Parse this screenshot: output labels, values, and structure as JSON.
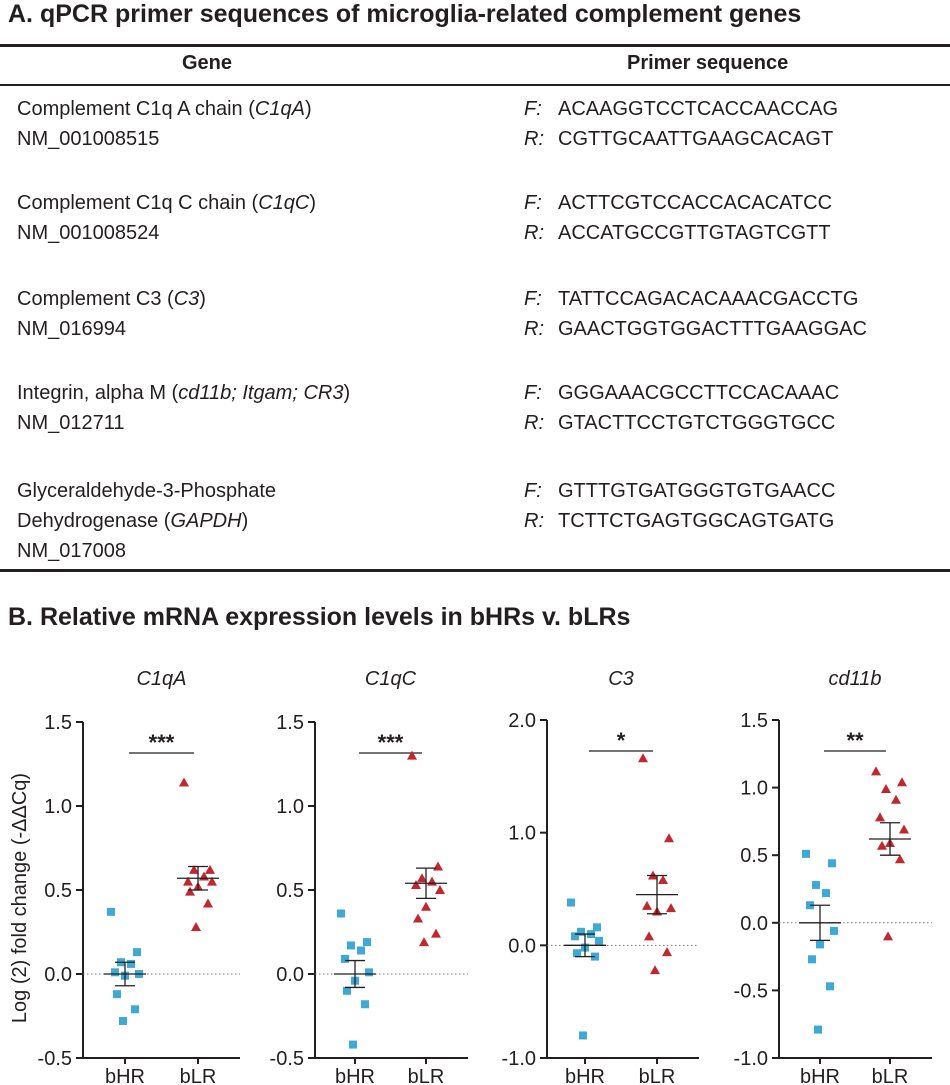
{
  "panel_a": {
    "title": "A. qPCR primer sequences of microglia-related complement genes",
    "columns": {
      "gene": "Gene",
      "primer": "Primer sequence"
    },
    "rows": [
      {
        "gene_pre": "Complement C1q A chain (",
        "gene_italic": "C1qA",
        "gene_post": ")",
        "accession": "NM_001008515",
        "f_label": "F:",
        "forward": "ACAAGGTCCTCACCAACCAG",
        "r_label": "R:",
        "reverse": "CGTTGCAATTGAAGCACAGT"
      },
      {
        "gene_pre": "Complement C1q C chain (",
        "gene_italic": "C1qC",
        "gene_post": ")",
        "accession": "NM_001008524",
        "f_label": "F:",
        "forward": "ACTTCGTCCACCACACATCC",
        "r_label": "R:",
        "reverse": "ACCATGCCGTTGTAGTCGTT"
      },
      {
        "gene_pre": "Complement C3 (",
        "gene_italic": "C3",
        "gene_post": ")",
        "accession": "NM_016994",
        "f_label": "F:",
        "forward": "TATTCCAGACACAAACGACCTG",
        "r_label": "R:",
        "reverse": "GAACTGGTGGACTTTGAAGGAC"
      },
      {
        "gene_pre": "Integrin, alpha M (",
        "gene_italic": "cd11b; Itgam; CR3",
        "gene_post": ")",
        "accession": "NM_012711",
        "f_label": "F:",
        "forward": "GGGAAACGCCTTCCACAAAC",
        "r_label": "R:",
        "reverse": "GTACTTCCTGTCTGGGTGCC"
      },
      {
        "gene_line1": "Glyceraldehyde-3-Phosphate",
        "gene_pre": "Dehydrogenase (",
        "gene_italic": "GAPDH",
        "gene_post": ")",
        "accession": "NM_017008",
        "f_label": "F:",
        "forward": "GTTTGTGATGGGTGTGAACC",
        "r_label": "R:",
        "reverse": "TCTTCTGAGTGGCAGTGATG"
      }
    ]
  },
  "panel_b": {
    "title": "B. Relative mRNA expression levels in bHRs v. bLRs",
    "ylabel": "Log (2) fold change (-ΔΔCq)"
  },
  "colors": {
    "bHR": "#3fa9d5",
    "bLR": "#c1272d",
    "text": "#231f20"
  },
  "chart_data": [
    {
      "type": "scatter",
      "title": "C1qA",
      "categories": [
        "bHR",
        "bLR"
      ],
      "ylim": [
        -0.5,
        1.5
      ],
      "yticks": [
        "-0.5",
        "0.0",
        "0.5",
        "1.0",
        "1.5"
      ],
      "ytick_values": [
        -0.5,
        0,
        0.5,
        1.0,
        1.5
      ],
      "significance": "***",
      "series": [
        {
          "name": "bHR",
          "marker": "square",
          "mean": 0.0,
          "sem": 0.07,
          "values": [
            0.37,
            0.13,
            0.07,
            0.06,
            0.01,
            0.0,
            -0.01,
            -0.12,
            -0.21,
            -0.28
          ]
        },
        {
          "name": "bLR",
          "marker": "triangle",
          "mean": 0.57,
          "sem": 0.07,
          "values": [
            1.14,
            0.62,
            0.62,
            0.58,
            0.55,
            0.55,
            0.52,
            0.49,
            0.42,
            0.28
          ]
        }
      ]
    },
    {
      "type": "scatter",
      "title": "C1qC",
      "categories": [
        "bHR",
        "bLR"
      ],
      "ylim": [
        -0.5,
        1.5
      ],
      "yticks": [
        "-0.5",
        "0.0",
        "0.5",
        "1.0",
        "1.5"
      ],
      "ytick_values": [
        -0.5,
        0,
        0.5,
        1.0,
        1.5
      ],
      "significance": "***",
      "series": [
        {
          "name": "bHR",
          "marker": "square",
          "mean": 0.0,
          "sem": 0.08,
          "values": [
            0.36,
            0.19,
            0.17,
            0.14,
            0.09,
            0.01,
            -0.04,
            -0.1,
            -0.18,
            -0.42
          ]
        },
        {
          "name": "bLR",
          "marker": "triangle",
          "mean": 0.54,
          "sem": 0.09,
          "values": [
            1.3,
            0.64,
            0.57,
            0.55,
            0.53,
            0.5,
            0.4,
            0.33,
            0.24,
            0.19
          ]
        }
      ]
    },
    {
      "type": "scatter",
      "title": "C3",
      "categories": [
        "bHR",
        "bLR"
      ],
      "ylim": [
        -1.0,
        2.0
      ],
      "yticks": [
        "-1.0",
        "0.0",
        "1.0",
        "2.0"
      ],
      "ytick_values": [
        -1.0,
        0,
        1.0,
        2.0
      ],
      "significance": "*",
      "series": [
        {
          "name": "bHR",
          "marker": "square",
          "mean": 0.0,
          "sem": 0.1,
          "values": [
            0.38,
            0.16,
            0.12,
            0.1,
            0.08,
            0.04,
            -0.02,
            -0.07,
            -0.1,
            -0.8
          ]
        },
        {
          "name": "bLR",
          "marker": "triangle",
          "mean": 0.45,
          "sem": 0.17,
          "values": [
            1.66,
            0.95,
            0.62,
            0.58,
            0.35,
            0.33,
            0.3,
            0.08,
            -0.06,
            -0.22
          ]
        }
      ]
    },
    {
      "type": "scatter",
      "title": "cd11b",
      "categories": [
        "bHR",
        "bLR"
      ],
      "ylim": [
        -1.0,
        1.5
      ],
      "yticks": [
        "-1.0",
        "-0.5",
        "0.0",
        "0.5",
        "1.0",
        "1.5"
      ],
      "ytick_values": [
        -1.0,
        -0.5,
        0,
        0.5,
        1.0,
        1.5
      ],
      "significance": "**",
      "series": [
        {
          "name": "bHR",
          "marker": "square",
          "mean": 0.0,
          "sem": 0.13,
          "values": [
            0.51,
            0.44,
            0.28,
            0.22,
            0.13,
            -0.06,
            -0.16,
            -0.27,
            -0.47,
            -0.79
          ]
        },
        {
          "name": "bLR",
          "marker": "triangle",
          "mean": 0.62,
          "sem": 0.12,
          "values": [
            1.12,
            1.04,
            0.99,
            0.91,
            0.78,
            0.69,
            0.59,
            0.57,
            0.47,
            -0.1
          ]
        }
      ]
    }
  ]
}
